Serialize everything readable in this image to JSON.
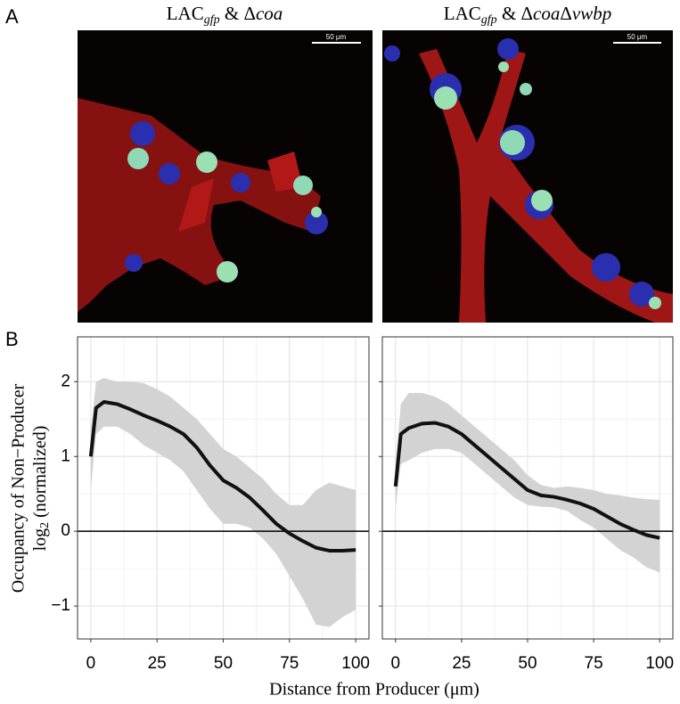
{
  "panel_labels": [
    "A",
    "B"
  ],
  "images": [
    {
      "title": [
        "LAC",
        "gfp",
        " & Δ",
        "coa"
      ],
      "scale_bar": "50 μm"
    },
    {
      "title": [
        "LAC",
        "gfp",
        " & Δ",
        "coa",
        "Δ",
        "vwbp"
      ],
      "scale_bar": "50 μm"
    }
  ],
  "chart_data": [
    {
      "type": "line",
      "ylabel": [
        "Occupancy of Non−Producer",
        "log",
        "2",
        " (normalized)"
      ],
      "xlabel": "Distance from Producer (μm)",
      "x": [
        0,
        2,
        5,
        10,
        15,
        20,
        25,
        30,
        35,
        40,
        45,
        50,
        55,
        60,
        65,
        70,
        75,
        80,
        85,
        90,
        95,
        100
      ],
      "values": [
        1.0,
        1.65,
        1.73,
        1.7,
        1.63,
        1.55,
        1.48,
        1.4,
        1.3,
        1.12,
        0.88,
        0.68,
        0.58,
        0.45,
        0.28,
        0.1,
        -0.03,
        -0.13,
        -0.22,
        -0.26,
        -0.26,
        -0.25
      ],
      "upper": [
        1.35,
        2.0,
        2.05,
        2.0,
        2.0,
        1.98,
        1.9,
        1.8,
        1.65,
        1.5,
        1.3,
        1.1,
        1.0,
        0.85,
        0.7,
        0.5,
        0.35,
        0.35,
        0.55,
        0.65,
        0.6,
        0.55
      ],
      "lower": [
        0.55,
        1.3,
        1.4,
        1.4,
        1.3,
        1.15,
        1.05,
        0.95,
        0.8,
        0.55,
        0.3,
        0.1,
        0.1,
        0.05,
        -0.1,
        -0.3,
        -0.6,
        -0.9,
        -1.25,
        -1.28,
        -1.15,
        -1.05
      ],
      "color": "#111111",
      "band_color": "#d3d3d3",
      "xlim": [
        -5,
        105
      ],
      "ylim": [
        -1.44,
        2.6
      ],
      "xticks": [
        0,
        25,
        50,
        75,
        100
      ],
      "yticks": [
        {
          "value": -1,
          "label": "−1"
        },
        0,
        1,
        2
      ],
      "ytick_labels": true,
      "grid": true,
      "hline": 0
    },
    {
      "type": "line",
      "x": [
        0,
        2,
        5,
        10,
        15,
        20,
        25,
        30,
        35,
        40,
        45,
        50,
        55,
        60,
        65,
        70,
        75,
        80,
        85,
        90,
        95,
        100
      ],
      "values": [
        0.6,
        1.3,
        1.38,
        1.44,
        1.45,
        1.4,
        1.3,
        1.15,
        1.0,
        0.85,
        0.7,
        0.55,
        0.48,
        0.46,
        0.42,
        0.37,
        0.3,
        0.2,
        0.1,
        0.02,
        -0.05,
        -0.09
      ],
      "upper": [
        0.9,
        1.7,
        1.85,
        1.85,
        1.8,
        1.7,
        1.55,
        1.4,
        1.25,
        1.1,
        0.95,
        0.75,
        0.62,
        0.58,
        0.6,
        0.58,
        0.55,
        0.5,
        0.48,
        0.45,
        0.43,
        0.42
      ],
      "lower": [
        0.3,
        0.9,
        0.95,
        1.05,
        1.1,
        1.1,
        1.05,
        0.9,
        0.75,
        0.6,
        0.45,
        0.35,
        0.33,
        0.32,
        0.27,
        0.15,
        0.05,
        -0.1,
        -0.25,
        -0.35,
        -0.48,
        -0.55
      ],
      "color": "#111111",
      "band_color": "#d3d3d3",
      "xlim": [
        -5,
        105
      ],
      "ylim": [
        -1.44,
        2.6
      ],
      "xticks": [
        0,
        25,
        50,
        75,
        100
      ],
      "yticks": [
        {
          "value": -1,
          "label": "−1"
        },
        0,
        1,
        2
      ],
      "ytick_labels": false,
      "grid": true,
      "hline": 0
    }
  ]
}
